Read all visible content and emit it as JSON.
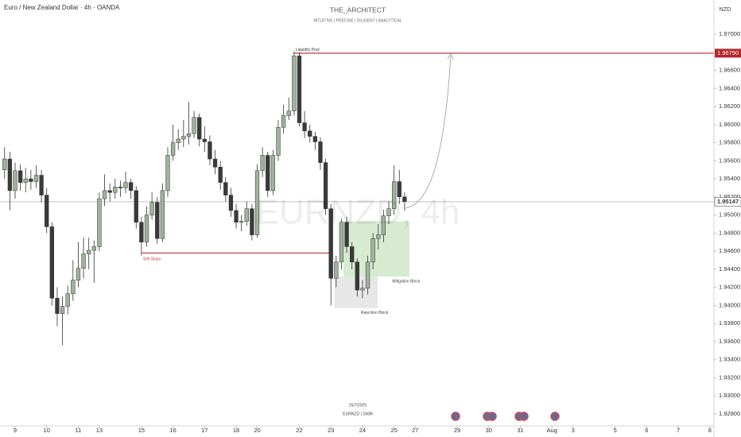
{
  "chart_data": {
    "type": "candlestick",
    "title": "Euro / New Zealand Dollar · 4h · OANDA",
    "author": "THE_ARCHITECT",
    "tagline": "INTUITIVE | PRECISE | DILIGENT | ANALYTICAL",
    "watermark": "EURNZD, 4h",
    "currency": "NZD",
    "footer_date": "25/7/2025",
    "footer_symbol": "EURNZD | 240M",
    "up_color": "#9fb39b",
    "down_color": "#3a3a3a",
    "x": [
      -2,
      -1,
      0,
      1,
      2,
      3,
      4,
      5,
      6,
      7,
      8,
      9,
      10,
      11,
      12,
      13,
      14,
      15,
      16,
      17,
      18,
      19,
      20,
      21,
      22,
      23,
      24,
      25,
      26,
      27,
      28,
      29,
      30,
      31,
      32,
      33,
      34,
      35,
      36,
      37,
      38,
      39,
      40,
      41,
      42,
      43,
      44,
      45,
      46,
      47,
      48,
      49,
      50,
      51,
      52,
      53,
      54,
      55,
      56,
      57,
      58,
      59,
      60,
      61,
      62,
      63,
      64,
      65,
      66,
      67,
      68,
      69,
      70,
      71,
      72,
      73,
      74
    ],
    "open": [
      1.955,
      1.9562,
      1.9527,
      1.9549,
      1.9536,
      1.954,
      1.9537,
      1.9544,
      1.9522,
      1.9487,
      1.9408,
      1.9391,
      1.9399,
      1.9413,
      1.9428,
      1.9441,
      1.9457,
      1.9461,
      1.9465,
      1.9518,
      1.9527,
      1.9525,
      1.9531,
      1.953,
      1.9536,
      1.9527,
      1.9492,
      1.947,
      1.95,
      1.9514,
      1.9474,
      1.9527,
      1.9566,
      1.958,
      1.9584,
      1.9587,
      1.959,
      1.9608,
      1.9584,
      1.9581,
      1.9562,
      1.9553,
      1.9536,
      1.9522,
      1.9505,
      1.9492,
      1.9493,
      1.9507,
      1.9478,
      1.9549,
      1.9566,
      1.9527,
      1.9566,
      1.9597,
      1.961,
      1.9615,
      1.9676,
      1.9602,
      1.9593,
      1.9587,
      1.9581,
      1.9558,
      1.9507,
      1.943,
      1.9448,
      1.9492,
      1.9465,
      1.9448,
      1.9417,
      1.9419,
      1.9448,
      1.9474,
      1.9478,
      1.9499,
      1.9507,
      1.9537,
      1.952
    ],
    "high": [
      1.9575,
      1.957,
      1.9558,
      1.9556,
      1.9552,
      1.955,
      1.9555,
      1.955,
      1.953,
      1.9492,
      1.942,
      1.941,
      1.9422,
      1.945,
      1.947,
      1.9475,
      1.9475,
      1.9472,
      1.9525,
      1.9545,
      1.9535,
      1.954,
      1.9538,
      1.9548,
      1.954,
      1.9532,
      1.9498,
      1.951,
      1.9525,
      1.952,
      1.9535,
      1.9575,
      1.96,
      1.9595,
      1.9605,
      1.9625,
      1.9615,
      1.9612,
      1.9598,
      1.9588,
      1.9572,
      1.956,
      1.9542,
      1.953,
      1.9512,
      1.95,
      1.9515,
      1.9512,
      1.9556,
      1.9575,
      1.957,
      1.9572,
      1.9605,
      1.9622,
      1.963,
      1.9681,
      1.968,
      1.9615,
      1.96,
      1.9592,
      1.9586,
      1.9562,
      1.9512,
      1.9455,
      1.9496,
      1.9498,
      1.947,
      1.9452,
      1.9428,
      1.9455,
      1.948,
      1.949,
      1.9506,
      1.9515,
      1.9555,
      1.955,
      1.9525
    ],
    "low": [
      1.954,
      1.9505,
      1.9518,
      1.9527,
      1.9525,
      1.9528,
      1.953,
      1.9514,
      1.948,
      1.94,
      1.9377,
      1.9356,
      1.939,
      1.9405,
      1.942,
      1.943,
      1.944,
      1.9425,
      1.946,
      1.951,
      1.9515,
      1.9518,
      1.952,
      1.9524,
      1.9518,
      1.9485,
      1.9455,
      1.9465,
      1.9495,
      1.9468,
      1.947,
      1.952,
      1.956,
      1.9572,
      1.9575,
      1.9578,
      1.9585,
      1.9576,
      1.957,
      1.9555,
      1.9545,
      1.9528,
      1.9515,
      1.9498,
      1.9485,
      1.9482,
      1.9488,
      1.9472,
      1.9475,
      1.9542,
      1.952,
      1.9522,
      1.956,
      1.959,
      1.9605,
      1.961,
      1.9598,
      1.9585,
      1.958,
      1.9572,
      1.955,
      1.95,
      1.94,
      1.942,
      1.944,
      1.9458,
      1.944,
      1.941,
      1.9408,
      1.9412,
      1.944,
      1.9462,
      1.947,
      1.949,
      1.95,
      1.9512,
      1.9505
    ],
    "close": [
      1.9562,
      1.9527,
      1.9549,
      1.9536,
      1.954,
      1.9537,
      1.9544,
      1.9522,
      1.9487,
      1.9408,
      1.9391,
      1.9399,
      1.9413,
      1.9428,
      1.9441,
      1.9457,
      1.9461,
      1.9465,
      1.9518,
      1.9527,
      1.9525,
      1.9531,
      1.953,
      1.9536,
      1.9527,
      1.9492,
      1.947,
      1.95,
      1.9514,
      1.9474,
      1.9527,
      1.9566,
      1.958,
      1.9584,
      1.9587,
      1.959,
      1.9608,
      1.9584,
      1.9581,
      1.9562,
      1.9553,
      1.9536,
      1.9522,
      1.9505,
      1.9492,
      1.9493,
      1.9507,
      1.9478,
      1.9549,
      1.9566,
      1.9527,
      1.9566,
      1.9597,
      1.961,
      1.9615,
      1.9676,
      1.9602,
      1.9593,
      1.9587,
      1.9581,
      1.9558,
      1.9507,
      1.943,
      1.9448,
      1.9492,
      1.9465,
      1.9448,
      1.9417,
      1.9419,
      1.9448,
      1.9474,
      1.9478,
      1.9499,
      1.9507,
      1.9537,
      1.952,
      1.9515
    ],
    "xlim": [
      -2.87,
      132.78
    ],
    "ylim": [
      1.92668,
      1.97378
    ],
    "grid": false,
    "xticks": [
      {
        "value": 0,
        "label": "9"
      },
      {
        "value": 6,
        "label": "10"
      },
      {
        "value": 12,
        "label": "11"
      },
      {
        "value": 16,
        "label": "13"
      },
      {
        "value": 24,
        "label": "15"
      },
      {
        "value": 30,
        "label": "16"
      },
      {
        "value": 36,
        "label": "17"
      },
      {
        "value": 42,
        "label": "18"
      },
      {
        "value": 46,
        "label": "20"
      },
      {
        "value": 54,
        "label": "22"
      },
      {
        "value": 60,
        "label": "23"
      },
      {
        "value": 66,
        "label": "24"
      },
      {
        "value": 72,
        "label": "25"
      },
      {
        "value": 76,
        "label": "27"
      },
      {
        "value": 84,
        "label": "29"
      },
      {
        "value": 90,
        "label": "30"
      },
      {
        "value": 96,
        "label": "31"
      },
      {
        "value": 102,
        "label": "Aug"
      },
      {
        "value": 106,
        "label": "3"
      },
      {
        "value": 114,
        "label": "5"
      },
      {
        "value": 120,
        "label": "6"
      },
      {
        "value": 126,
        "label": "7"
      },
      {
        "value": 132,
        "label": "8"
      }
    ],
    "yticks": [
      {
        "value": 1.928,
        "label": "1.92800"
      },
      {
        "value": 1.93,
        "label": "1.93000"
      },
      {
        "value": 1.932,
        "label": "1.93200"
      },
      {
        "value": 1.934,
        "label": "1.93400"
      },
      {
        "value": 1.936,
        "label": "1.93600"
      },
      {
        "value": 1.938,
        "label": "1.93800"
      },
      {
        "value": 1.94,
        "label": "1.94000"
      },
      {
        "value": 1.942,
        "label": "1.94200"
      },
      {
        "value": 1.944,
        "label": "1.94400"
      },
      {
        "value": 1.946,
        "label": "1.94600"
      },
      {
        "value": 1.948,
        "label": "1.94800"
      },
      {
        "value": 1.95,
        "label": "1.95000"
      },
      {
        "value": 1.952,
        "label": "1.95200"
      },
      {
        "value": 1.954,
        "label": "1.95400"
      },
      {
        "value": 1.956,
        "label": "1.95600"
      },
      {
        "value": 1.958,
        "label": "1.95800"
      },
      {
        "value": 1.96,
        "label": "1.96000"
      },
      {
        "value": 1.962,
        "label": "1.96200"
      },
      {
        "value": 1.964,
        "label": "1.96400"
      },
      {
        "value": 1.966,
        "label": "1.96600"
      },
      {
        "value": 1.968,
        "label": "1.96800"
      },
      {
        "value": 1.97,
        "label": "1.97000"
      }
    ],
    "last_price": {
      "value": 1.95147,
      "label": "1.95147"
    },
    "levels": [
      {
        "label": "Liquidity Pool",
        "value": 1.9679,
        "price_label": "1.96790",
        "from": 53,
        "color": "#b3262e"
      },
      {
        "label": "Sell Stops",
        "value": 1.9458,
        "from": 24,
        "to": 60,
        "color": "#c0393f"
      }
    ],
    "zones": [
      {
        "label": "Mitigation Block",
        "x": [
          62.4,
          74.9
        ],
        "y": [
          1.9432,
          1.9493
        ],
        "color": "#cfe8c9"
      },
      {
        "label": "Rejection Block",
        "x": [
          60.7,
          68.9
        ],
        "y": [
          1.9397,
          1.9432
        ],
        "color": "#e3e3e3"
      }
    ]
  }
}
